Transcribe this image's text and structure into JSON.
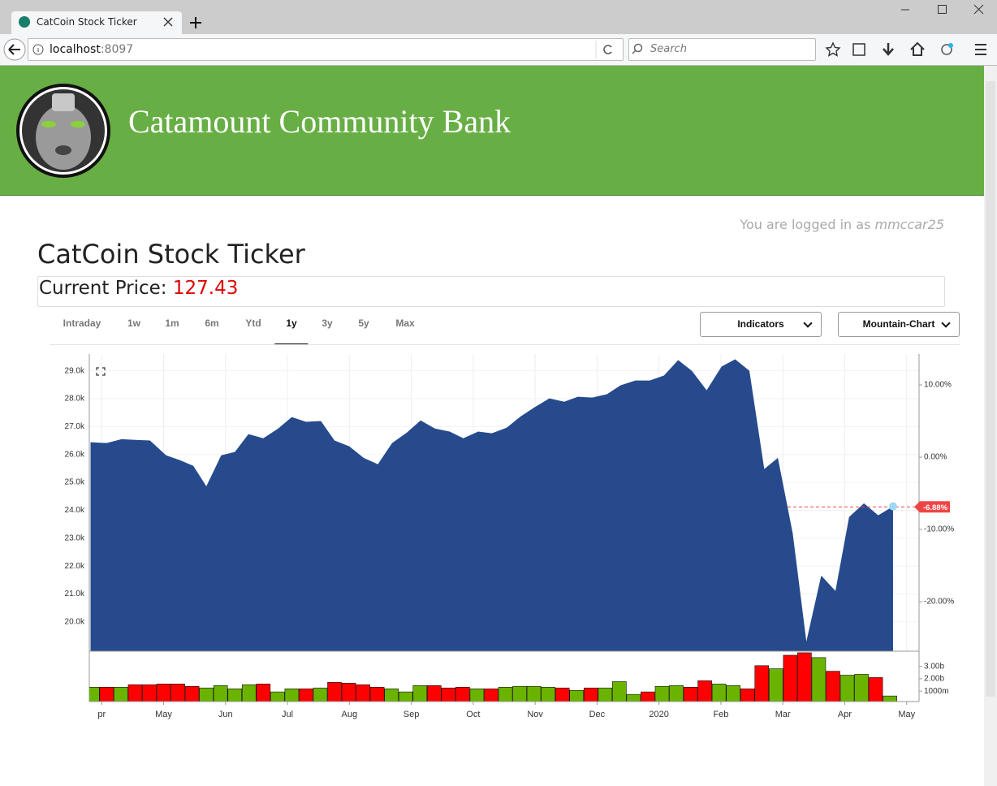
{
  "browser": {
    "tab_title": "CatCoin Stock Ticker",
    "url_host": "localhost",
    "url_port": ":8097",
    "search_placeholder": "Search"
  },
  "header": {
    "bank_name": "Catamount Community Bank"
  },
  "login": {
    "prefix": "You are logged in as",
    "user": "mmccar25"
  },
  "title": "CatCoin Stock Ticker",
  "price": {
    "label": "Current Price:",
    "value": 127.43
  },
  "ranges": [
    "Intraday",
    "1w",
    "1m",
    "6m",
    "Ytd",
    "1y",
    "3y",
    "5y",
    "Max"
  ],
  "selected_range": 5,
  "selects": [
    "Indicators",
    "Mountain-Chart"
  ],
  "chart_data": [
    {
      "type": "area",
      "color": "#264a8c",
      "grid": true,
      "x": [
        -0.18,
        0.08,
        0.32,
        0.58,
        0.78,
        1.04,
        1.26,
        1.48,
        1.69,
        1.93,
        2.15,
        2.37,
        2.61,
        2.85,
        3.07,
        3.3,
        3.54,
        3.76,
        4.0,
        4.23,
        4.46,
        4.69,
        4.93,
        5.15,
        5.38,
        5.62,
        5.84,
        6.08,
        6.3,
        6.54,
        6.77,
        6.99,
        7.23,
        7.47,
        7.69,
        7.92,
        8.16,
        8.38,
        8.62,
        8.85,
        9.08,
        9.31,
        9.53,
        9.77,
        10.01,
        10.23,
        10.46,
        10.7,
        10.92,
        11.16,
        11.38,
        11.62,
        11.85,
        12.07,
        12.31,
        12.54,
        12.78
      ],
      "values": [
        26440,
        26410,
        26550,
        26520,
        26500,
        25970,
        25800,
        25590,
        24860,
        25970,
        26090,
        26730,
        26580,
        26930,
        27340,
        27170,
        27200,
        26500,
        26290,
        25880,
        25650,
        26410,
        26790,
        27220,
        26930,
        26820,
        26580,
        26820,
        26760,
        26960,
        27370,
        27690,
        28010,
        27890,
        28070,
        28040,
        28160,
        28480,
        28650,
        28650,
        28830,
        29380,
        29000,
        28300,
        29150,
        29410,
        29000,
        25480,
        25880,
        23170,
        19300,
        21660,
        21110,
        23760,
        24250,
        23820,
        24140
      ],
      "xlim": [
        -0.2,
        13.2
      ],
      "ylim": [
        18950,
        29600
      ],
      "yticks": [
        {
          "value": 20000,
          "label": "20.0k"
        },
        {
          "value": 21000,
          "label": "21.0k"
        },
        {
          "value": 22000,
          "label": "22.0k"
        },
        {
          "value": 23000,
          "label": "23.0k"
        },
        {
          "value": 24000,
          "label": "24.0k"
        },
        {
          "value": 25000,
          "label": "25.0k"
        },
        {
          "value": 26000,
          "label": "26.0k"
        },
        {
          "value": 27000,
          "label": "27.0k"
        },
        {
          "value": 28000,
          "label": "28.0k"
        },
        {
          "value": 29000,
          "label": "29.0k"
        }
      ],
      "y2lim": [
        -26.85,
        14.27
      ],
      "y2ticks": [
        {
          "value": 10,
          "label": "10.00%"
        },
        {
          "value": 0,
          "label": "0.00%"
        },
        {
          "value": -10,
          "label": "-10.00%"
        },
        {
          "value": -20,
          "label": "-20.00%"
        }
      ],
      "annotations": [
        {
          "value": -6.88,
          "label": "-6.88%",
          "axis": "y2",
          "color": "#f04545"
        }
      ]
    },
    {
      "type": "bar",
      "yaxis_position": "right",
      "x": [
        -0.15,
        0.08,
        0.31,
        0.54,
        0.77,
        1.0,
        1.23,
        1.46,
        1.69,
        1.92,
        2.15,
        2.38,
        2.61,
        2.84,
        3.07,
        3.3,
        3.53,
        3.76,
        3.99,
        4.22,
        4.45,
        4.68,
        4.91,
        5.14,
        5.37,
        5.6,
        5.83,
        6.06,
        6.29,
        6.52,
        6.75,
        6.98,
        7.21,
        7.44,
        7.67,
        7.9,
        8.13,
        8.36,
        8.59,
        8.82,
        9.05,
        9.28,
        9.51,
        9.74,
        9.97,
        10.2,
        10.43,
        10.66,
        10.89,
        11.12,
        11.35,
        11.58,
        11.81,
        12.04,
        12.27,
        12.5,
        12.73
      ],
      "values": [
        1320,
        1320,
        1320,
        1520,
        1520,
        1580,
        1580,
        1390,
        1260,
        1450,
        1190,
        1520,
        1580,
        940,
        1190,
        1190,
        1260,
        1710,
        1650,
        1520,
        1320,
        1190,
        940,
        1450,
        1450,
        1260,
        1320,
        1190,
        1190,
        1320,
        1390,
        1390,
        1320,
        1260,
        1060,
        1260,
        1260,
        1770,
        740,
        940,
        1390,
        1450,
        1320,
        1840,
        1580,
        1450,
        1190,
        3060,
        2810,
        3900,
        4100,
        3710,
        2610,
        2290,
        2360,
        2100,
        610
      ],
      "colors": [
        "#6ab400",
        "#ff0000",
        "#6ab400",
        "#ff0000",
        "#ff0000",
        "#ff0000",
        "#ff0000",
        "#ff0000",
        "#6ab400",
        "#6ab400",
        "#6ab400",
        "#6ab400",
        "#ff0000",
        "#6ab400",
        "#6ab400",
        "#ff0000",
        "#6ab400",
        "#ff0000",
        "#ff0000",
        "#ff0000",
        "#ff0000",
        "#6ab400",
        "#6ab400",
        "#6ab400",
        "#ff0000",
        "#ff0000",
        "#ff0000",
        "#6ab400",
        "#ff0000",
        "#6ab400",
        "#6ab400",
        "#6ab400",
        "#6ab400",
        "#ff0000",
        "#6ab400",
        "#ff0000",
        "#6ab400",
        "#6ab400",
        "#6ab400",
        "#ff0000",
        "#6ab400",
        "#6ab400",
        "#ff0000",
        "#ff0000",
        "#6ab400",
        "#6ab400",
        "#ff0000",
        "#ff0000",
        "#6ab400",
        "#ff0000",
        "#ff0000",
        "#6ab400",
        "#ff0000",
        "#6ab400",
        "#6ab400",
        "#ff0000",
        "#6ab400"
      ],
      "xlim": [
        -0.2,
        13.2
      ],
      "ylim": [
        160,
        4160
      ],
      "yticks": [
        {
          "value": 1000,
          "label": "1000m"
        },
        {
          "value": 2000,
          "label": "2.00b"
        },
        {
          "value": 3000,
          "label": "3.00b"
        }
      ],
      "xticks": [
        {
          "value": 0,
          "label": "pr"
        },
        {
          "value": 1,
          "label": "May"
        },
        {
          "value": 2,
          "label": "Jun"
        },
        {
          "value": 3,
          "label": "Jul"
        },
        {
          "value": 4,
          "label": "Aug"
        },
        {
          "value": 5,
          "label": "Sep"
        },
        {
          "value": 6,
          "label": "Oct"
        },
        {
          "value": 7,
          "label": "Nov"
        },
        {
          "value": 8,
          "label": "Dec"
        },
        {
          "value": 9,
          "label": "2020"
        },
        {
          "value": 10,
          "label": "Feb"
        },
        {
          "value": 11,
          "label": "Mar"
        },
        {
          "value": 12,
          "label": "Apr"
        },
        {
          "value": 13,
          "label": "May"
        }
      ]
    }
  ]
}
